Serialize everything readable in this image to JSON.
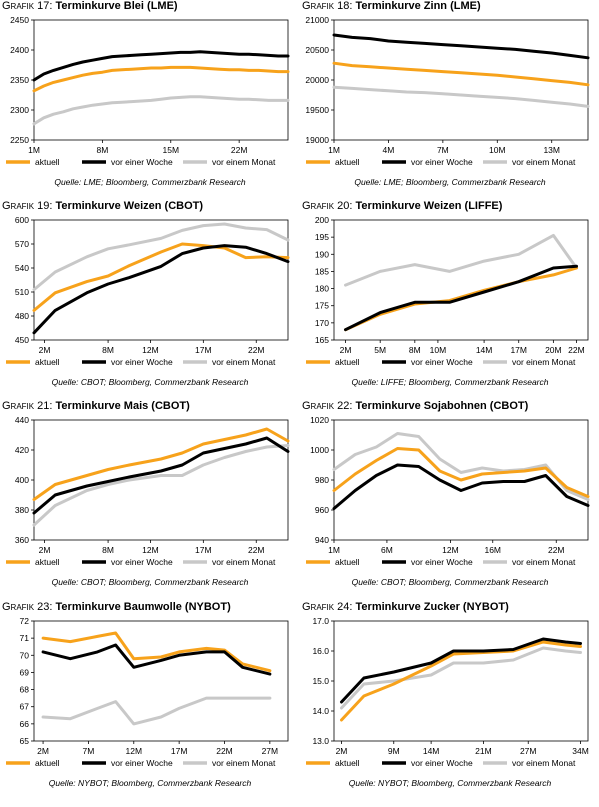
{
  "legend": {
    "aktuell": "aktuell",
    "woche": "vor einer Woche",
    "monat": "vor einem Monat"
  },
  "colors": {
    "aktuell": "#F7A21B",
    "woche": "#000000",
    "monat": "#C8C8C8"
  },
  "chart_data": [
    {
      "type": "line",
      "grafik_label": "Grafik",
      "number": "17:",
      "title": "Terminkurve Blei (LME)",
      "source": "Quelle: LME; Bloomberg, Commerzbank Research",
      "yticks": [
        "2250",
        "2300",
        "2350",
        "2400",
        "2450"
      ],
      "ylim": [
        2250,
        2450
      ],
      "xticks": [
        "1M",
        "8M",
        "15M",
        "22M"
      ],
      "xtick_pos": [
        1,
        8,
        15,
        22
      ],
      "xlim": [
        1,
        27
      ],
      "x": [
        1,
        2,
        3,
        4,
        5,
        6,
        7,
        8,
        9,
        10,
        11,
        12,
        13,
        14,
        15,
        16,
        17,
        18,
        19,
        20,
        21,
        22,
        23,
        24,
        25,
        26,
        27
      ],
      "series": [
        {
          "key": "aktuell",
          "values": [
            2332,
            2340,
            2346,
            2350,
            2354,
            2358,
            2361,
            2363,
            2366,
            2367,
            2368,
            2369,
            2370,
            2370,
            2371,
            2371,
            2371,
            2370,
            2369,
            2368,
            2367,
            2367,
            2366,
            2366,
            2365,
            2364,
            2364
          ]
        },
        {
          "key": "woche",
          "values": [
            2350,
            2360,
            2366,
            2371,
            2376,
            2380,
            2383,
            2386,
            2389,
            2390,
            2391,
            2392,
            2393,
            2394,
            2395,
            2396,
            2396,
            2397,
            2396,
            2395,
            2394,
            2393,
            2393,
            2392,
            2391,
            2390,
            2390
          ]
        },
        {
          "key": "monat",
          "values": [
            2277,
            2287,
            2293,
            2297,
            2302,
            2305,
            2308,
            2310,
            2312,
            2313,
            2314,
            2315,
            2316,
            2318,
            2320,
            2321,
            2322,
            2322,
            2321,
            2320,
            2319,
            2318,
            2318,
            2317,
            2316,
            2316,
            2316
          ]
        }
      ]
    },
    {
      "type": "line",
      "grafik_label": "Grafik",
      "number": "18:",
      "title": "Terminkurve Zinn (LME)",
      "source": "Quelle: LME; Bloomberg, Commerzbank Research",
      "yticks": [
        "19000",
        "19500",
        "20000",
        "20500",
        "21000"
      ],
      "ylim": [
        19000,
        21000
      ],
      "xticks": [
        "1M",
        "4M",
        "7M",
        "10M",
        "13M"
      ],
      "xtick_pos": [
        1,
        4,
        7,
        10,
        13
      ],
      "xlim": [
        1,
        15
      ],
      "x": [
        1,
        2,
        3,
        4,
        5,
        6,
        7,
        8,
        9,
        10,
        11,
        12,
        13,
        14,
        15
      ],
      "series": [
        {
          "key": "aktuell",
          "values": [
            20280,
            20240,
            20220,
            20200,
            20180,
            20160,
            20140,
            20120,
            20100,
            20080,
            20050,
            20020,
            19990,
            19960,
            19920
          ]
        },
        {
          "key": "woche",
          "values": [
            20750,
            20710,
            20690,
            20650,
            20630,
            20610,
            20590,
            20570,
            20550,
            20530,
            20510,
            20480,
            20450,
            20410,
            20370
          ]
        },
        {
          "key": "monat",
          "values": [
            19880,
            19860,
            19840,
            19820,
            19800,
            19790,
            19770,
            19750,
            19730,
            19710,
            19690,
            19660,
            19630,
            19600,
            19560
          ]
        }
      ]
    },
    {
      "type": "line",
      "grafik_label": "Grafik",
      "number": "19:",
      "title": "Terminkurve Weizen (CBOT)",
      "source": "Quelle: CBOT; Bloomberg, Commerzbank Research",
      "yticks": [
        "450",
        "480",
        "510",
        "540",
        "570",
        "600"
      ],
      "ylim": [
        450,
        600
      ],
      "xticks": [
        "2M",
        "8M",
        "12M",
        "17M",
        "22M"
      ],
      "xtick_pos": [
        2,
        8,
        12,
        17,
        22
      ],
      "xlim": [
        1,
        25
      ],
      "x": [
        1,
        3,
        6,
        8,
        10,
        13,
        15,
        17,
        19,
        21,
        23,
        25
      ],
      "series": [
        {
          "key": "aktuell",
          "values": [
            487,
            509,
            523,
            530,
            543,
            560,
            570,
            568,
            565,
            553,
            554,
            553
          ]
        },
        {
          "key": "woche",
          "values": [
            459,
            487,
            509,
            520,
            528,
            542,
            558,
            565,
            568,
            566,
            558,
            548
          ]
        },
        {
          "key": "monat",
          "values": [
            513,
            535,
            554,
            564,
            569,
            577,
            587,
            593,
            595,
            590,
            588,
            575
          ]
        }
      ]
    },
    {
      "type": "line",
      "grafik_label": "Grafik",
      "number": "20:",
      "title": "Terminkurve Weizen (LIFFE)",
      "source": "Quelle: LIFFE; Bloomberg, Commerzbank Research",
      "yticks": [
        "165",
        "170",
        "175",
        "180",
        "185",
        "190",
        "195",
        "200"
      ],
      "ylim": [
        165,
        200
      ],
      "xticks": [
        "2M",
        "5M",
        "8M",
        "10M",
        "14M",
        "17M",
        "20M",
        "22M"
      ],
      "xtick_pos": [
        2,
        5,
        8,
        10,
        14,
        17,
        20,
        22
      ],
      "xlim": [
        1,
        23
      ],
      "x": [
        2,
        5,
        8,
        11,
        14,
        17,
        20,
        22
      ],
      "series": [
        {
          "key": "aktuell",
          "values": [
            168,
            172.5,
            175.5,
            176.5,
            179.5,
            182,
            184,
            186
          ]
        },
        {
          "key": "woche",
          "values": [
            168,
            173,
            176,
            176,
            179,
            182,
            186,
            186.5
          ]
        },
        {
          "key": "monat",
          "values": [
            181,
            185,
            187,
            185,
            188,
            190,
            195.5,
            186
          ]
        }
      ]
    },
    {
      "type": "line",
      "grafik_label": "Grafik",
      "number": "21:",
      "title": "Terminkurve Mais (CBOT)",
      "source": "Quelle: CBOT; Bloomberg, Commerzbank Research",
      "yticks": [
        "360",
        "380",
        "400",
        "420",
        "440"
      ],
      "ylim": [
        360,
        440
      ],
      "xticks": [
        "2M",
        "8M",
        "12M",
        "17M",
        "22M"
      ],
      "xtick_pos": [
        2,
        8,
        12,
        17,
        22
      ],
      "xlim": [
        1,
        25
      ],
      "x": [
        1,
        3,
        6,
        8,
        10,
        13,
        15,
        17,
        19,
        21,
        23,
        25
      ],
      "series": [
        {
          "key": "aktuell",
          "values": [
            387,
            397,
            403,
            407,
            410,
            414,
            418,
            424,
            427,
            430,
            434,
            426
          ]
        },
        {
          "key": "woche",
          "values": [
            378,
            390,
            396,
            399,
            402,
            406,
            410,
            418,
            421,
            424,
            428,
            419
          ]
        },
        {
          "key": "monat",
          "values": [
            370,
            383,
            393,
            397,
            400,
            403,
            403,
            410,
            415,
            419,
            422,
            423
          ]
        }
      ]
    },
    {
      "type": "line",
      "grafik_label": "Grafik",
      "number": "22:",
      "title": "Terminkurve Sojabohnen (CBOT)",
      "source": "Quelle: CBOT; Bloomberg, Commerzbank Research",
      "yticks": [
        "940",
        "960",
        "980",
        "1000",
        "1020"
      ],
      "ylim": [
        940,
        1020
      ],
      "xticks": [
        "1M",
        "6M",
        "12M",
        "16M",
        "22M"
      ],
      "xtick_pos": [
        1,
        6,
        12,
        16,
        22
      ],
      "xlim": [
        1,
        25
      ],
      "x": [
        1,
        3,
        5,
        7,
        9,
        11,
        13,
        15,
        17,
        19,
        21,
        23,
        25
      ],
      "series": [
        {
          "key": "aktuell",
          "values": [
            973,
            984,
            993,
            1001,
            1000,
            986,
            980,
            984,
            985,
            986,
            988,
            975,
            969
          ]
        },
        {
          "key": "woche",
          "values": [
            961,
            973,
            983,
            990,
            989,
            980,
            973,
            978,
            979,
            979,
            983,
            969,
            963
          ]
        },
        {
          "key": "monat",
          "values": [
            987,
            997,
            1002,
            1011,
            1009,
            994,
            985,
            988,
            986,
            987,
            990,
            973,
            967
          ]
        }
      ]
    },
    {
      "type": "line",
      "grafik_label": "Grafik",
      "number": "23:",
      "title": "Terminkurve Baumwolle (NYBOT)",
      "source": "Quelle: NYBOT; Bloomberg, Commerzbank Research",
      "yticks": [
        "65",
        "66",
        "67",
        "68",
        "69",
        "70",
        "71",
        "72"
      ],
      "ylim": [
        65,
        72
      ],
      "xticks": [
        "2M",
        "7M",
        "12M",
        "17M",
        "22M",
        "27M"
      ],
      "xtick_pos": [
        2,
        7,
        12,
        17,
        22,
        27
      ],
      "xlim": [
        1,
        29
      ],
      "x": [
        2,
        5,
        8,
        10,
        12,
        15,
        17,
        20,
        22,
        24,
        27
      ],
      "series": [
        {
          "key": "aktuell",
          "values": [
            71.0,
            70.8,
            71.1,
            71.3,
            69.8,
            69.9,
            70.2,
            70.4,
            70.3,
            69.5,
            69.1
          ]
        },
        {
          "key": "woche",
          "values": [
            70.2,
            69.8,
            70.2,
            70.6,
            69.3,
            69.7,
            70.0,
            70.2,
            70.2,
            69.3,
            68.9
          ]
        },
        {
          "key": "monat",
          "values": [
            66.4,
            66.3,
            66.9,
            67.3,
            66.0,
            66.4,
            66.9,
            67.5,
            67.5,
            67.5,
            67.5
          ]
        }
      ]
    },
    {
      "type": "line",
      "grafik_label": "Grafik",
      "number": "24:",
      "title": "Terminkurve Zucker (NYBOT)",
      "source": "Quelle: NYBOT; Bloomberg, Commerzbank Research",
      "yticks": [
        "13.0",
        "14.0",
        "15.0",
        "16.0",
        "17.0"
      ],
      "ylim": [
        13,
        17
      ],
      "xticks": [
        "2M",
        "9M",
        "14M",
        "21M",
        "27M",
        "34M"
      ],
      "xtick_pos": [
        2,
        9,
        14,
        21,
        27,
        34
      ],
      "xlim": [
        1,
        35
      ],
      "x": [
        2,
        5,
        9,
        14,
        17,
        21,
        25,
        29,
        32,
        34
      ],
      "series": [
        {
          "key": "aktuell",
          "values": [
            13.7,
            14.5,
            14.9,
            15.5,
            15.9,
            15.95,
            16.0,
            16.3,
            16.2,
            16.15
          ]
        },
        {
          "key": "woche",
          "values": [
            14.3,
            15.1,
            15.3,
            15.6,
            16.0,
            16.0,
            16.05,
            16.4,
            16.3,
            16.25
          ]
        },
        {
          "key": "monat",
          "values": [
            14.1,
            14.9,
            15.0,
            15.2,
            15.6,
            15.6,
            15.7,
            16.1,
            16.0,
            15.95
          ]
        }
      ]
    }
  ]
}
